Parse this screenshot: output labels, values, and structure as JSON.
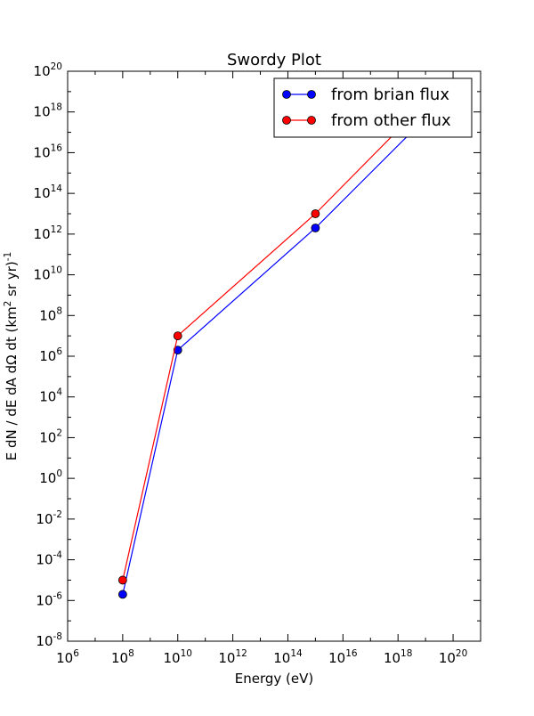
{
  "chart_data": {
    "type": "line",
    "title": "Swordy Plot",
    "xlabel": "Energy (eV)",
    "ylabel": {
      "main": "E dN / dE dA dΩ dt (km",
      "sup1": "2",
      "mid": " sr yr)",
      "sup2": "-1"
    },
    "x_scale": "log",
    "y_scale": "log",
    "xlim": [
      1000000.0,
      1e+21
    ],
    "ylim": [
      1e-08,
      1e+20
    ],
    "x_ticks": [
      {
        "base": "10",
        "exp": "6",
        "value": 1000000.0
      },
      {
        "base": "10",
        "exp": "8",
        "value": 100000000.0
      },
      {
        "base": "10",
        "exp": "10",
        "value": 10000000000.0
      },
      {
        "base": "10",
        "exp": "12",
        "value": 1000000000000.0
      },
      {
        "base": "10",
        "exp": "14",
        "value": 100000000000000.0
      },
      {
        "base": "10",
        "exp": "16",
        "value": 1e+16
      },
      {
        "base": "10",
        "exp": "18",
        "value": 1e+18
      },
      {
        "base": "10",
        "exp": "20",
        "value": 1e+20
      }
    ],
    "y_ticks": [
      {
        "base": "10",
        "exp": "-8",
        "value": 1e-08
      },
      {
        "base": "10",
        "exp": "-6",
        "value": 1e-06
      },
      {
        "base": "10",
        "exp": "-4",
        "value": 0.0001
      },
      {
        "base": "10",
        "exp": "-2",
        "value": 0.01
      },
      {
        "base": "10",
        "exp": "0",
        "value": 1
      },
      {
        "base": "10",
        "exp": "2",
        "value": 100.0
      },
      {
        "base": "10",
        "exp": "4",
        "value": 10000.0
      },
      {
        "base": "10",
        "exp": "6",
        "value": 1000000.0
      },
      {
        "base": "10",
        "exp": "8",
        "value": 100000000.0
      },
      {
        "base": "10",
        "exp": "10",
        "value": 10000000000.0
      },
      {
        "base": "10",
        "exp": "12",
        "value": 1000000000000.0
      },
      {
        "base": "10",
        "exp": "14",
        "value": 100000000000000.0
      },
      {
        "base": "10",
        "exp": "16",
        "value": 1e+16
      },
      {
        "base": "10",
        "exp": "18",
        "value": 1e+18
      },
      {
        "base": "10",
        "exp": "20",
        "value": 1e+20
      }
    ],
    "legend_position": "top-right",
    "grid": false,
    "series": [
      {
        "name": "from brian flux",
        "color": "#0000ff",
        "x": [
          100000000.0,
          10000000000.0,
          1000000000000000.0,
          1e+19
        ],
        "y": [
          2e-06,
          2000000.0,
          2000000000000.0,
          5e+17
        ]
      },
      {
        "name": "from other flux",
        "color": "#ff0000",
        "x": [
          100000000.0,
          10000000000.0,
          1000000000000000.0,
          1e+19
        ],
        "y": [
          1e-05,
          10000000.0,
          10000000000000.0,
          3e+18
        ]
      }
    ]
  }
}
